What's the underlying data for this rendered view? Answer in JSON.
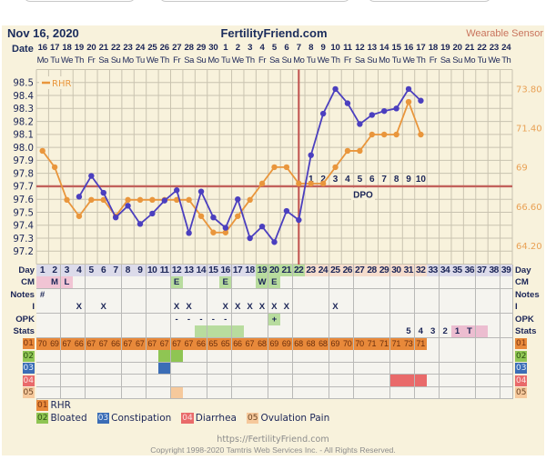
{
  "header": {
    "date": "Nov 16, 2020",
    "site": "FertilityFriend.com",
    "mode": "Wearable Sensor",
    "date_label": "Date"
  },
  "dates": [
    "16",
    "17",
    "18",
    "19",
    "20",
    "21",
    "22",
    "23",
    "24",
    "25",
    "26",
    "27",
    "28",
    "29",
    "30",
    "1",
    "2",
    "3",
    "4",
    "5",
    "6",
    "7",
    "8",
    "9",
    "10",
    "11",
    "12",
    "13",
    "14",
    "15",
    "16",
    "17",
    "18",
    "19",
    "20",
    "21",
    "22",
    "23",
    "24"
  ],
  "weekdays": [
    "Mo",
    "Tu",
    "We",
    "Th",
    "Fr",
    "Sa",
    "Su",
    "Mo",
    "Tu",
    "We",
    "Th",
    "Fr",
    "Sa",
    "Su",
    "Mo",
    "Tu",
    "We",
    "Th",
    "Fr",
    "Sa",
    "Su",
    "Mo",
    "Tu",
    "We",
    "Th",
    "Fr",
    "Sa",
    "Su",
    "Mo",
    "Tu",
    "We",
    "Th",
    "Fr",
    "Sa",
    "Su",
    "Mo",
    "Tu",
    "We",
    "Th"
  ],
  "chart_data": {
    "type": "line",
    "title": "",
    "xlabel": "",
    "ylabel": "",
    "x": [
      1,
      2,
      3,
      4,
      5,
      6,
      7,
      8,
      9,
      10,
      11,
      12,
      13,
      14,
      15,
      16,
      17,
      18,
      19,
      20,
      21,
      22,
      23,
      24,
      25,
      26,
      27,
      28,
      29,
      30,
      31,
      32,
      33,
      34,
      35,
      36,
      37,
      38,
      39
    ],
    "y_axis": {
      "ticks": [
        "98.5",
        "98.4",
        "98.3",
        "98.2",
        "98.1",
        "98.0",
        "97.9",
        "97.8",
        "97.7",
        "97.6",
        "97.5",
        "97.4",
        "97.3",
        "97.2"
      ],
      "range": [
        97.1,
        98.6
      ]
    },
    "y2_axis": {
      "ticks": [
        "73.80",
        "71.40",
        "69",
        "66.60",
        "64.20"
      ],
      "range": [
        64.2,
        73.8
      ]
    },
    "series": [
      {
        "name": "Temperature",
        "axis": "left",
        "color": "#4b3fbf",
        "values": [
          null,
          null,
          null,
          97.62,
          97.78,
          97.65,
          97.46,
          97.55,
          97.41,
          97.49,
          97.59,
          97.67,
          97.34,
          97.66,
          97.46,
          97.38,
          97.6,
          97.3,
          97.39,
          97.27,
          97.51,
          97.44,
          97.94,
          98.26,
          98.45,
          98.34,
          98.18,
          98.25,
          98.28,
          98.3,
          98.45,
          98.36,
          null,
          null,
          null,
          null,
          null,
          null,
          null
        ]
      },
      {
        "name": "RHR",
        "axis": "right",
        "color": "#e9963c",
        "values": [
          70,
          69,
          67,
          66,
          67,
          67,
          66,
          67,
          67,
          67,
          67,
          67,
          67,
          66,
          65,
          65,
          66,
          67,
          68,
          69,
          69,
          68,
          68,
          68,
          69,
          70,
          70,
          71,
          71,
          71,
          73,
          71,
          null,
          null,
          null,
          null,
          null,
          null,
          null
        ]
      }
    ],
    "legend": [
      {
        "label": "RHR",
        "color": "#e9963c",
        "position": "top-left"
      }
    ],
    "coverline": 97.7,
    "ovulation_day": 22,
    "dpo": {
      "start_day": 23,
      "labels": [
        "1",
        "2",
        "3",
        "4",
        "5",
        "6",
        "7",
        "8",
        "9",
        "10"
      ],
      "caption": "DPO"
    },
    "grid": true,
    "colors": {
      "coverline": "#c2615b",
      "ovulation_line": "#c0504d",
      "grid": "#c9c3b0"
    }
  },
  "table": {
    "rows": [
      {
        "key": "day",
        "left_label": "Day",
        "right_label": "Day",
        "style": "day",
        "cells": [
          "1",
          "2",
          "3",
          "4",
          "5",
          "6",
          "7",
          "8",
          "9",
          "10",
          "11",
          "12",
          "13",
          "14",
          "15",
          "16",
          "17",
          "18",
          "19",
          "20",
          "21",
          "22",
          "23",
          "24",
          "25",
          "26",
          "27",
          "28",
          "29",
          "30",
          "31",
          "32",
          "33",
          "34",
          "35",
          "36",
          "37",
          "38",
          "39"
        ],
        "fills": [
          {
            "from": 1,
            "to": 18,
            "color": "#dcdbea"
          },
          {
            "from": 19,
            "to": 22,
            "color": "#b8dc9e"
          },
          {
            "from": 23,
            "to": 32,
            "color": "#f5dccc"
          },
          {
            "from": 33,
            "to": 39,
            "color": "#dcdbea"
          }
        ]
      },
      {
        "key": "cm",
        "left_label": "CM",
        "right_label": "CM",
        "cells": [
          "",
          "M",
          "L",
          "",
          "",
          "",
          "",
          "",
          "",
          "",
          "",
          "E",
          "",
          "",
          "",
          "E",
          "",
          "",
          "W",
          "E",
          "",
          "",
          "",
          "",
          "",
          "",
          "",
          "",
          "",
          "",
          "",
          "",
          "",
          "",
          "",
          "",
          "",
          "",
          ""
        ],
        "fills": [
          {
            "days": [
              1,
              2,
              3
            ],
            "color": "#f1c4d4"
          },
          {
            "days": [
              12,
              16,
              19,
              20
            ],
            "color": "#b8dc9e"
          }
        ]
      },
      {
        "key": "notes",
        "left_label": "Notes",
        "right_label": "Notes",
        "cells": [
          "#",
          "",
          "",
          "",
          "",
          "",
          "",
          "",
          "",
          "",
          "",
          "",
          "",
          "",
          "",
          "",
          "",
          "",
          "",
          "",
          "",
          "",
          "",
          "",
          "",
          "",
          "",
          "",
          "",
          "",
          "",
          "",
          "",
          "",
          "",
          "",
          "",
          "",
          ""
        ],
        "fills": []
      },
      {
        "key": "intercourse",
        "left_label": "I",
        "right_label": "I",
        "cells": [
          "",
          "",
          "",
          "X",
          "",
          "X",
          "",
          "",
          "",
          "",
          "",
          "X",
          "X",
          "",
          "",
          "X",
          "X",
          "X",
          "X",
          "X",
          "X",
          "",
          "",
          "",
          "X",
          "",
          "",
          "",
          "",
          "",
          "",
          "",
          "",
          "",
          "",
          "",
          "",
          "",
          ""
        ],
        "fills": []
      },
      {
        "key": "opk",
        "left_label": "OPK",
        "right_label": "OPK",
        "cells": [
          "",
          "",
          "",
          "",
          "",
          "",
          "",
          "",
          "",
          "",
          "",
          "-",
          "-",
          "-",
          "-",
          "-",
          "",
          "",
          "",
          "+",
          "",
          "",
          "",
          "",
          "",
          "",
          "",
          "",
          "",
          "",
          "",
          "",
          "",
          "",
          "",
          "",
          "",
          "",
          ""
        ],
        "fills": [
          {
            "days": [
              20
            ],
            "color": "#b8dc9e"
          }
        ]
      },
      {
        "key": "stats",
        "left_label": "Stats",
        "right_label": "Stats",
        "cells": [
          "",
          "",
          "",
          "",
          "",
          "",
          "",
          "",
          "",
          "",
          "",
          "",
          "",
          "",
          "",
          "",
          "",
          "",
          "",
          "",
          "",
          "",
          "",
          "",
          "",
          "",
          "",
          "",
          "",
          "",
          "5",
          "4",
          "3",
          "2",
          "1",
          "T",
          "",
          "",
          ""
        ],
        "fills": [
          {
            "days": [
              14,
              15,
              16,
              17
            ],
            "color": "#b8dc9e"
          },
          {
            "days": [
              35,
              36,
              37
            ],
            "color": "#ecbdd0"
          }
        ]
      },
      {
        "key": "symptom-01",
        "code": "01",
        "code_bg": "#e8893a",
        "code_fg": "#7a3410",
        "style": "rhr",
        "cells": [
          "70",
          "69",
          "67",
          "66",
          "67",
          "67",
          "66",
          "67",
          "67",
          "67",
          "67",
          "67",
          "67",
          "66",
          "65",
          "65",
          "66",
          "67",
          "68",
          "69",
          "69",
          "68",
          "68",
          "68",
          "69",
          "70",
          "70",
          "71",
          "71",
          "71",
          "73",
          "71",
          "",
          "",
          "",
          "",
          "",
          "",
          ""
        ],
        "fills": [
          {
            "from": 1,
            "to": 32,
            "color": "#e8893a"
          }
        ]
      },
      {
        "key": "symptom-02",
        "code": "02",
        "code_bg": "#8fc553",
        "code_fg": "#2e5212",
        "cells": [],
        "fills": [
          {
            "days": [
              11,
              12
            ],
            "color": "#8fc553"
          }
        ]
      },
      {
        "key": "symptom-03",
        "code": "03",
        "code_bg": "#3b6db6",
        "code_fg": "#e3ecfa",
        "cells": [],
        "fills": [
          {
            "days": [
              11
            ],
            "color": "#3b6db6"
          }
        ]
      },
      {
        "key": "symptom-04",
        "code": "04",
        "code_bg": "#e96a6a",
        "code_fg": "#fbe3e3",
        "cells": [],
        "fills": [
          {
            "days": [
              30,
              31,
              32
            ],
            "color": "#e96a6a"
          }
        ]
      },
      {
        "key": "symptom-05",
        "code": "05",
        "code_bg": "#f6c99c",
        "code_fg": "#6a4322",
        "cells": [],
        "fills": [
          {
            "days": [
              12
            ],
            "color": "#f6c99c"
          }
        ]
      }
    ]
  },
  "legend": [
    {
      "code": "01",
      "label": "RHR",
      "bg": "#e8893a",
      "fg": "#7a3410"
    },
    {
      "code": "02",
      "label": "Bloated",
      "bg": "#8fc553",
      "fg": "#2e5212"
    },
    {
      "code": "03",
      "label": "Constipation",
      "bg": "#3b6db6",
      "fg": "#e3ecfa"
    },
    {
      "code": "04",
      "label": "Diarrhea",
      "bg": "#e96a6a",
      "fg": "#fbe3e3"
    },
    {
      "code": "05",
      "label": "Ovulation Pain",
      "bg": "#f6c99c",
      "fg": "#6a4322"
    }
  ],
  "footer": {
    "url": "https://FertilityFriend.com",
    "copyright": "Copyright 1998-2020 Tamtris Web Services Inc. - All Rights Reserved."
  }
}
